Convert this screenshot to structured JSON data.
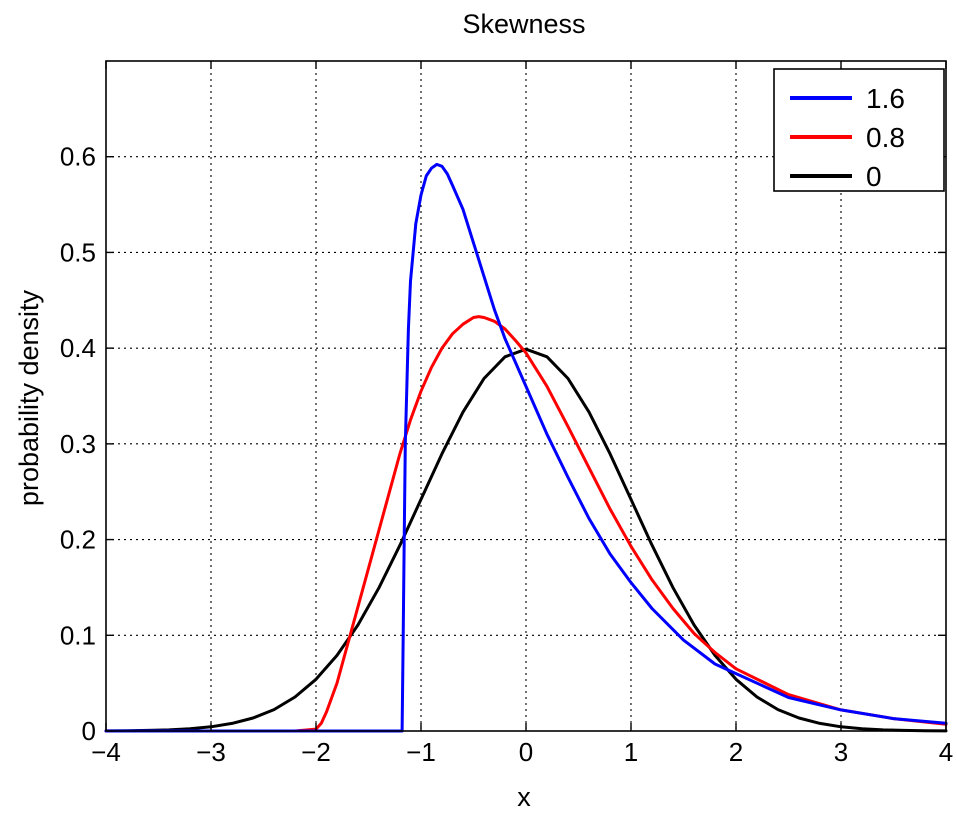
{
  "chart_data": {
    "type": "line",
    "title": "Skewness",
    "xlabel": "x",
    "ylabel": "probability density",
    "xlim": [
      -4,
      4
    ],
    "ylim": [
      0,
      0.7
    ],
    "xticks": [
      -4,
      -3,
      -2,
      -1,
      0,
      1,
      2,
      3,
      4
    ],
    "xtick_labels": [
      "−4",
      "−3",
      "−2",
      "−1",
      "0",
      "1",
      "2",
      "3",
      "4"
    ],
    "yticks": [
      0,
      0.1,
      0.2,
      0.3,
      0.4,
      0.5,
      0.6
    ],
    "ytick_labels": [
      "0",
      "0.1",
      "0.2",
      "0.3",
      "0.4",
      "0.5",
      "0.6"
    ],
    "grid": true,
    "legend_position": "top-right",
    "series": [
      {
        "name": "1.6",
        "color": "#0000ff",
        "x": [
          -4,
          -1.3,
          -1.2,
          -1.18,
          -1.17,
          -1.16,
          -1.15,
          -1.12,
          -1.1,
          -1.05,
          -1.0,
          -0.95,
          -0.9,
          -0.85,
          -0.8,
          -0.75,
          -0.7,
          -0.6,
          -0.5,
          -0.4,
          -0.3,
          -0.2,
          -0.1,
          0.0,
          0.1,
          0.2,
          0.4,
          0.6,
          0.8,
          1.0,
          1.2,
          1.5,
          1.8,
          2.0,
          2.5,
          3.0,
          3.5,
          4.0
        ],
        "y": [
          0,
          0,
          0,
          0,
          0.1,
          0.2,
          0.3,
          0.42,
          0.47,
          0.53,
          0.56,
          0.58,
          0.588,
          0.592,
          0.59,
          0.582,
          0.57,
          0.545,
          0.51,
          0.475,
          0.44,
          0.41,
          0.385,
          0.36,
          0.335,
          0.31,
          0.265,
          0.222,
          0.185,
          0.155,
          0.128,
          0.095,
          0.07,
          0.06,
          0.035,
          0.022,
          0.013,
          0.008
        ]
      },
      {
        "name": "0.8",
        "color": "#ff0000",
        "x": [
          -4,
          -3,
          -2.2,
          -2.0,
          -1.95,
          -1.9,
          -1.8,
          -1.7,
          -1.6,
          -1.5,
          -1.4,
          -1.3,
          -1.2,
          -1.1,
          -1.0,
          -0.9,
          -0.8,
          -0.7,
          -0.6,
          -0.5,
          -0.45,
          -0.4,
          -0.3,
          -0.2,
          -0.1,
          0.0,
          0.2,
          0.4,
          0.6,
          0.8,
          1.0,
          1.2,
          1.4,
          1.6,
          1.8,
          2.0,
          2.5,
          3.0,
          3.5,
          4.0
        ],
        "y": [
          0,
          0,
          0,
          0.002,
          0.008,
          0.02,
          0.05,
          0.09,
          0.13,
          0.17,
          0.21,
          0.25,
          0.29,
          0.325,
          0.355,
          0.38,
          0.4,
          0.415,
          0.425,
          0.432,
          0.433,
          0.432,
          0.428,
          0.42,
          0.408,
          0.395,
          0.36,
          0.318,
          0.275,
          0.232,
          0.193,
          0.158,
          0.128,
          0.102,
          0.082,
          0.065,
          0.038,
          0.022,
          0.013,
          0.007
        ]
      },
      {
        "name": "0",
        "color": "#000000",
        "x": [
          -4.0,
          -3.8,
          -3.6,
          -3.4,
          -3.2,
          -3.0,
          -2.8,
          -2.6,
          -2.4,
          -2.2,
          -2.0,
          -1.8,
          -1.6,
          -1.4,
          -1.2,
          -1.0,
          -0.8,
          -0.6,
          -0.4,
          -0.2,
          0.0,
          0.2,
          0.4,
          0.6,
          0.8,
          1.0,
          1.2,
          1.4,
          1.6,
          1.8,
          2.0,
          2.2,
          2.4,
          2.6,
          2.8,
          3.0,
          3.2,
          3.4,
          3.6,
          3.8,
          4.0
        ],
        "y": [
          0.0001,
          0.0003,
          0.0006,
          0.0012,
          0.0024,
          0.0044,
          0.0079,
          0.0136,
          0.0224,
          0.0355,
          0.054,
          0.079,
          0.1109,
          0.1497,
          0.1942,
          0.242,
          0.2897,
          0.3332,
          0.3683,
          0.391,
          0.3989,
          0.391,
          0.3683,
          0.3332,
          0.2897,
          0.242,
          0.1942,
          0.1497,
          0.1109,
          0.079,
          0.054,
          0.0355,
          0.0224,
          0.0136,
          0.0079,
          0.0044,
          0.0024,
          0.0012,
          0.0006,
          0.0003,
          0.0001
        ]
      }
    ]
  }
}
